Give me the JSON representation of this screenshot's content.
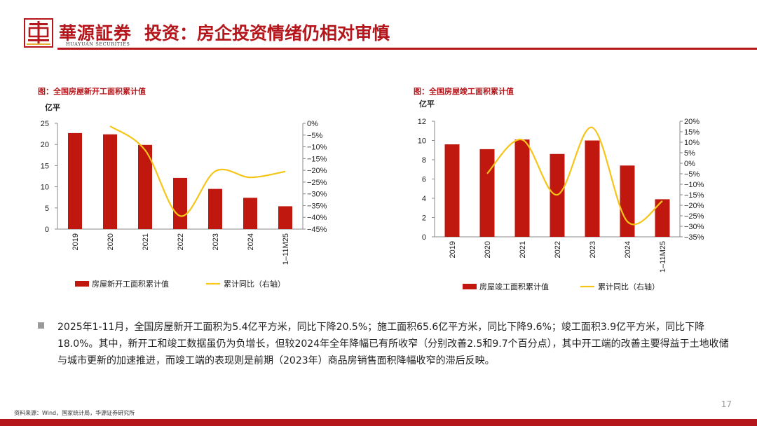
{
  "brand": {
    "name_cn": "華源証券",
    "name_en": "HUAYUAN SECURITIES"
  },
  "slide_title": "投资：房企投资情绪仍相对审慎",
  "colors": {
    "bar": "#c0180f",
    "line": "#f5c518",
    "brand": "#b5161b"
  },
  "chart_data": [
    {
      "type": "bar",
      "title": "图：全国房屋新开工面积累计值",
      "ylabel": "亿平",
      "categories": [
        "2019",
        "2020",
        "2021",
        "2022",
        "2023",
        "2024",
        "1–11M25"
      ],
      "ylim": [
        0,
        25
      ],
      "yticks": [
        "25",
        "20",
        "15",
        "10",
        "5",
        "0"
      ],
      "y2lim": [
        -45,
        0
      ],
      "y2ticks": [
        "0%",
        "−5%",
        "−10%",
        "−15%",
        "−20%",
        "−25%",
        "−30%",
        "−35%",
        "−40%",
        "−45%"
      ],
      "series": [
        {
          "name": "房屋新开工面积累计值",
          "type": "bar",
          "axis": "left",
          "values": [
            22.7,
            22.4,
            19.9,
            12.1,
            9.5,
            7.4,
            5.4
          ]
        },
        {
          "name": "累计同比（右轴）",
          "type": "line",
          "axis": "right",
          "values": [
            null,
            -1.2,
            -11.4,
            -39.4,
            -20.4,
            -23.0,
            -20.5
          ]
        }
      ]
    },
    {
      "type": "bar",
      "title": "图：全国房屋竣工面积累计值",
      "ylabel": "亿平",
      "categories": [
        "2019",
        "2020",
        "2021",
        "2022",
        "2023",
        "2024",
        "1–11M25"
      ],
      "ylim": [
        0,
        12
      ],
      "yticks": [
        "12",
        "10",
        "8",
        "6",
        "4",
        "2",
        "0"
      ],
      "y2lim": [
        -35,
        20
      ],
      "y2ticks": [
        "20%",
        "15%",
        "10%",
        "5%",
        "0%",
        "−5%",
        "−10%",
        "−15%",
        "−20%",
        "−25%",
        "−30%",
        "−35%"
      ],
      "series": [
        {
          "name": "房屋竣工面积累计值",
          "type": "bar",
          "axis": "left",
          "values": [
            9.6,
            9.1,
            10.1,
            8.6,
            10.0,
            7.4,
            3.9
          ]
        },
        {
          "name": "累计同比（右轴）",
          "type": "line",
          "axis": "right",
          "values": [
            null,
            -4.9,
            11.2,
            -15.0,
            17.0,
            -27.7,
            -18.0
          ]
        }
      ]
    }
  ],
  "body_text": "2025年1-11月，全国房屋新开工面积为5.4亿平方米，同比下降20.5%；施工面积65.6亿平方米，同比下降9.6%；竣工面积3.9亿平方米，同比下降18.0%。其中，新开工和竣工数据虽仍为负增长，但较2024年全年降幅已有所收窄（分别改善2.5和9.7个百分点），其中开工端的改善主要得益于土地收储与城市更新的加速推进，而竣工端的表现则是前期（2023年）商品房销售面积降幅收窄的滞后反映。",
  "source": "资料来源：Wind，国家统计局，华源证券研究所",
  "page_number": "17"
}
